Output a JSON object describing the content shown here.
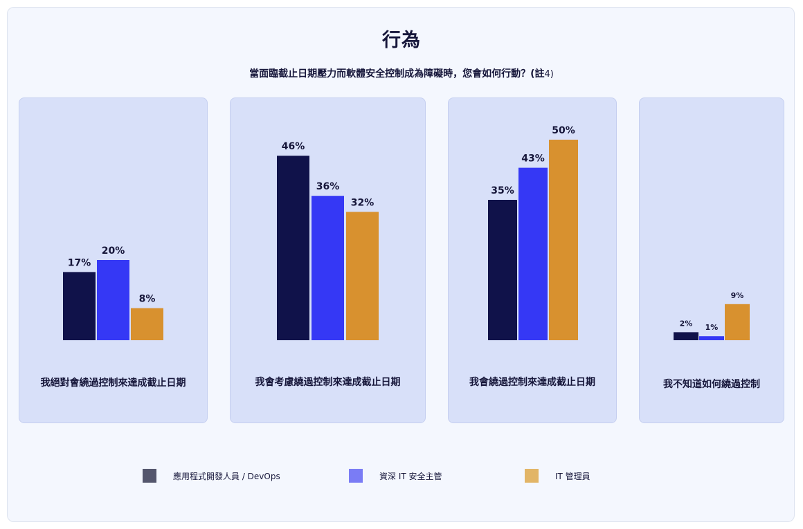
{
  "title": "行為",
  "subtitle": "當面臨截止日期壓力而軟體安全控制成為障礙時，您會如何行動？(註",
  "subtitle_note": "4)",
  "colors": {
    "series_1": "#10124a",
    "series_2": "#3538f5",
    "series_3": "#d8912f",
    "legend_1": "#54566d",
    "legend_2": "#7a7cf5",
    "legend_3": "#e2b567",
    "panel_bg": "#d8e0f9"
  },
  "legend": [
    {
      "label": "應用程式開發人員 / DevOps"
    },
    {
      "label": "資深 IT 安全主管"
    },
    {
      "label": "IT 管理員"
    }
  ],
  "chart_data": {
    "type": "bar",
    "title": "行為",
    "subtitle": "當面臨截止日期壓力而軟體安全控制成為障礙時，您會如何行動？(註4)",
    "categories": [
      "我絕對會繞過控制來達成截止日期",
      "我會考慮繞過控制來達成截止日期",
      "我會繞過控制來達成截止日期",
      "我不知道如何繞過控制"
    ],
    "series": [
      {
        "name": "應用程式開發人員 / DevOps",
        "values": [
          17,
          46,
          35,
          2
        ]
      },
      {
        "name": "資深 IT 安全主管",
        "values": [
          20,
          36,
          43,
          1
        ]
      },
      {
        "name": "IT 管理員",
        "values": [
          8,
          32,
          50,
          9
        ]
      }
    ],
    "value_labels": [
      [
        "17%",
        "20%",
        "8%"
      ],
      [
        "46%",
        "36%",
        "32%"
      ],
      [
        "35%",
        "43%",
        "50%"
      ],
      [
        "2%",
        "1%",
        "9%"
      ]
    ],
    "unit": "%",
    "grid": false,
    "legend_position": "bottom"
  }
}
